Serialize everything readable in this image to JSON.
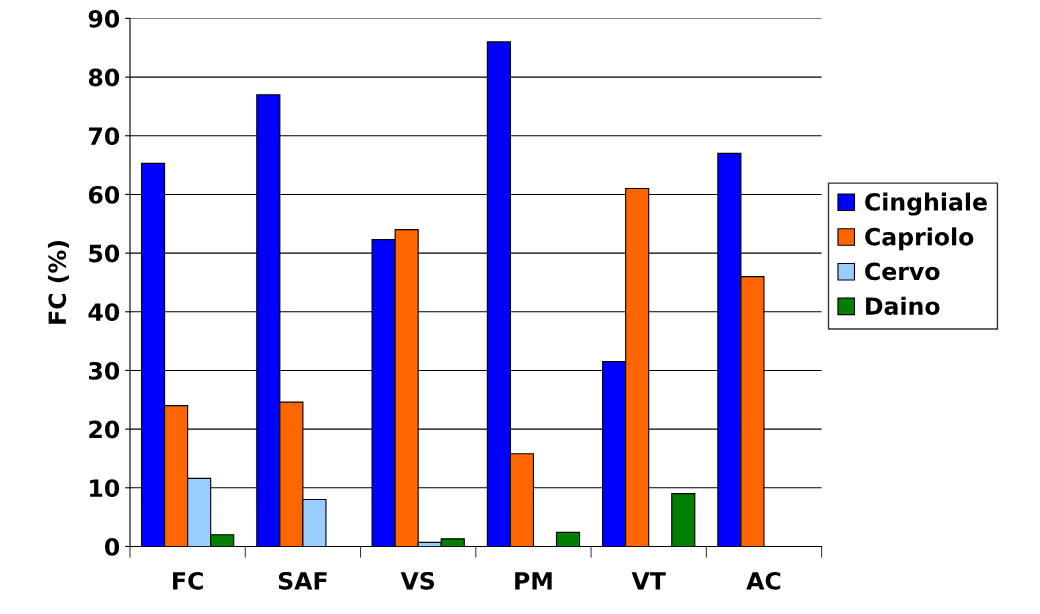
{
  "chart_data": {
    "type": "bar",
    "ylabel": "FC (%)",
    "categories": [
      "FC",
      "SAF",
      "VS",
      "PM",
      "VT",
      "AC"
    ],
    "series": [
      {
        "name": "Cinghiale",
        "color": "#0000ff",
        "values": [
          65.3,
          77,
          52.3,
          86,
          31.5,
          67
        ]
      },
      {
        "name": "Capriolo",
        "color": "#ff6600",
        "values": [
          24,
          24.6,
          54,
          15.8,
          61,
          46
        ]
      },
      {
        "name": "Cervo",
        "color": "#99ccff",
        "values": [
          11.6,
          8,
          0.7,
          null,
          null,
          null
        ]
      },
      {
        "name": "Daino",
        "color": "#008000",
        "values": [
          2,
          null,
          1.3,
          2.4,
          9,
          null
        ]
      }
    ],
    "ylim": [
      0,
      90
    ],
    "yticks": [
      0,
      10,
      20,
      30,
      40,
      50,
      60,
      70,
      80,
      90
    ],
    "grid": "y",
    "legend": "right"
  }
}
